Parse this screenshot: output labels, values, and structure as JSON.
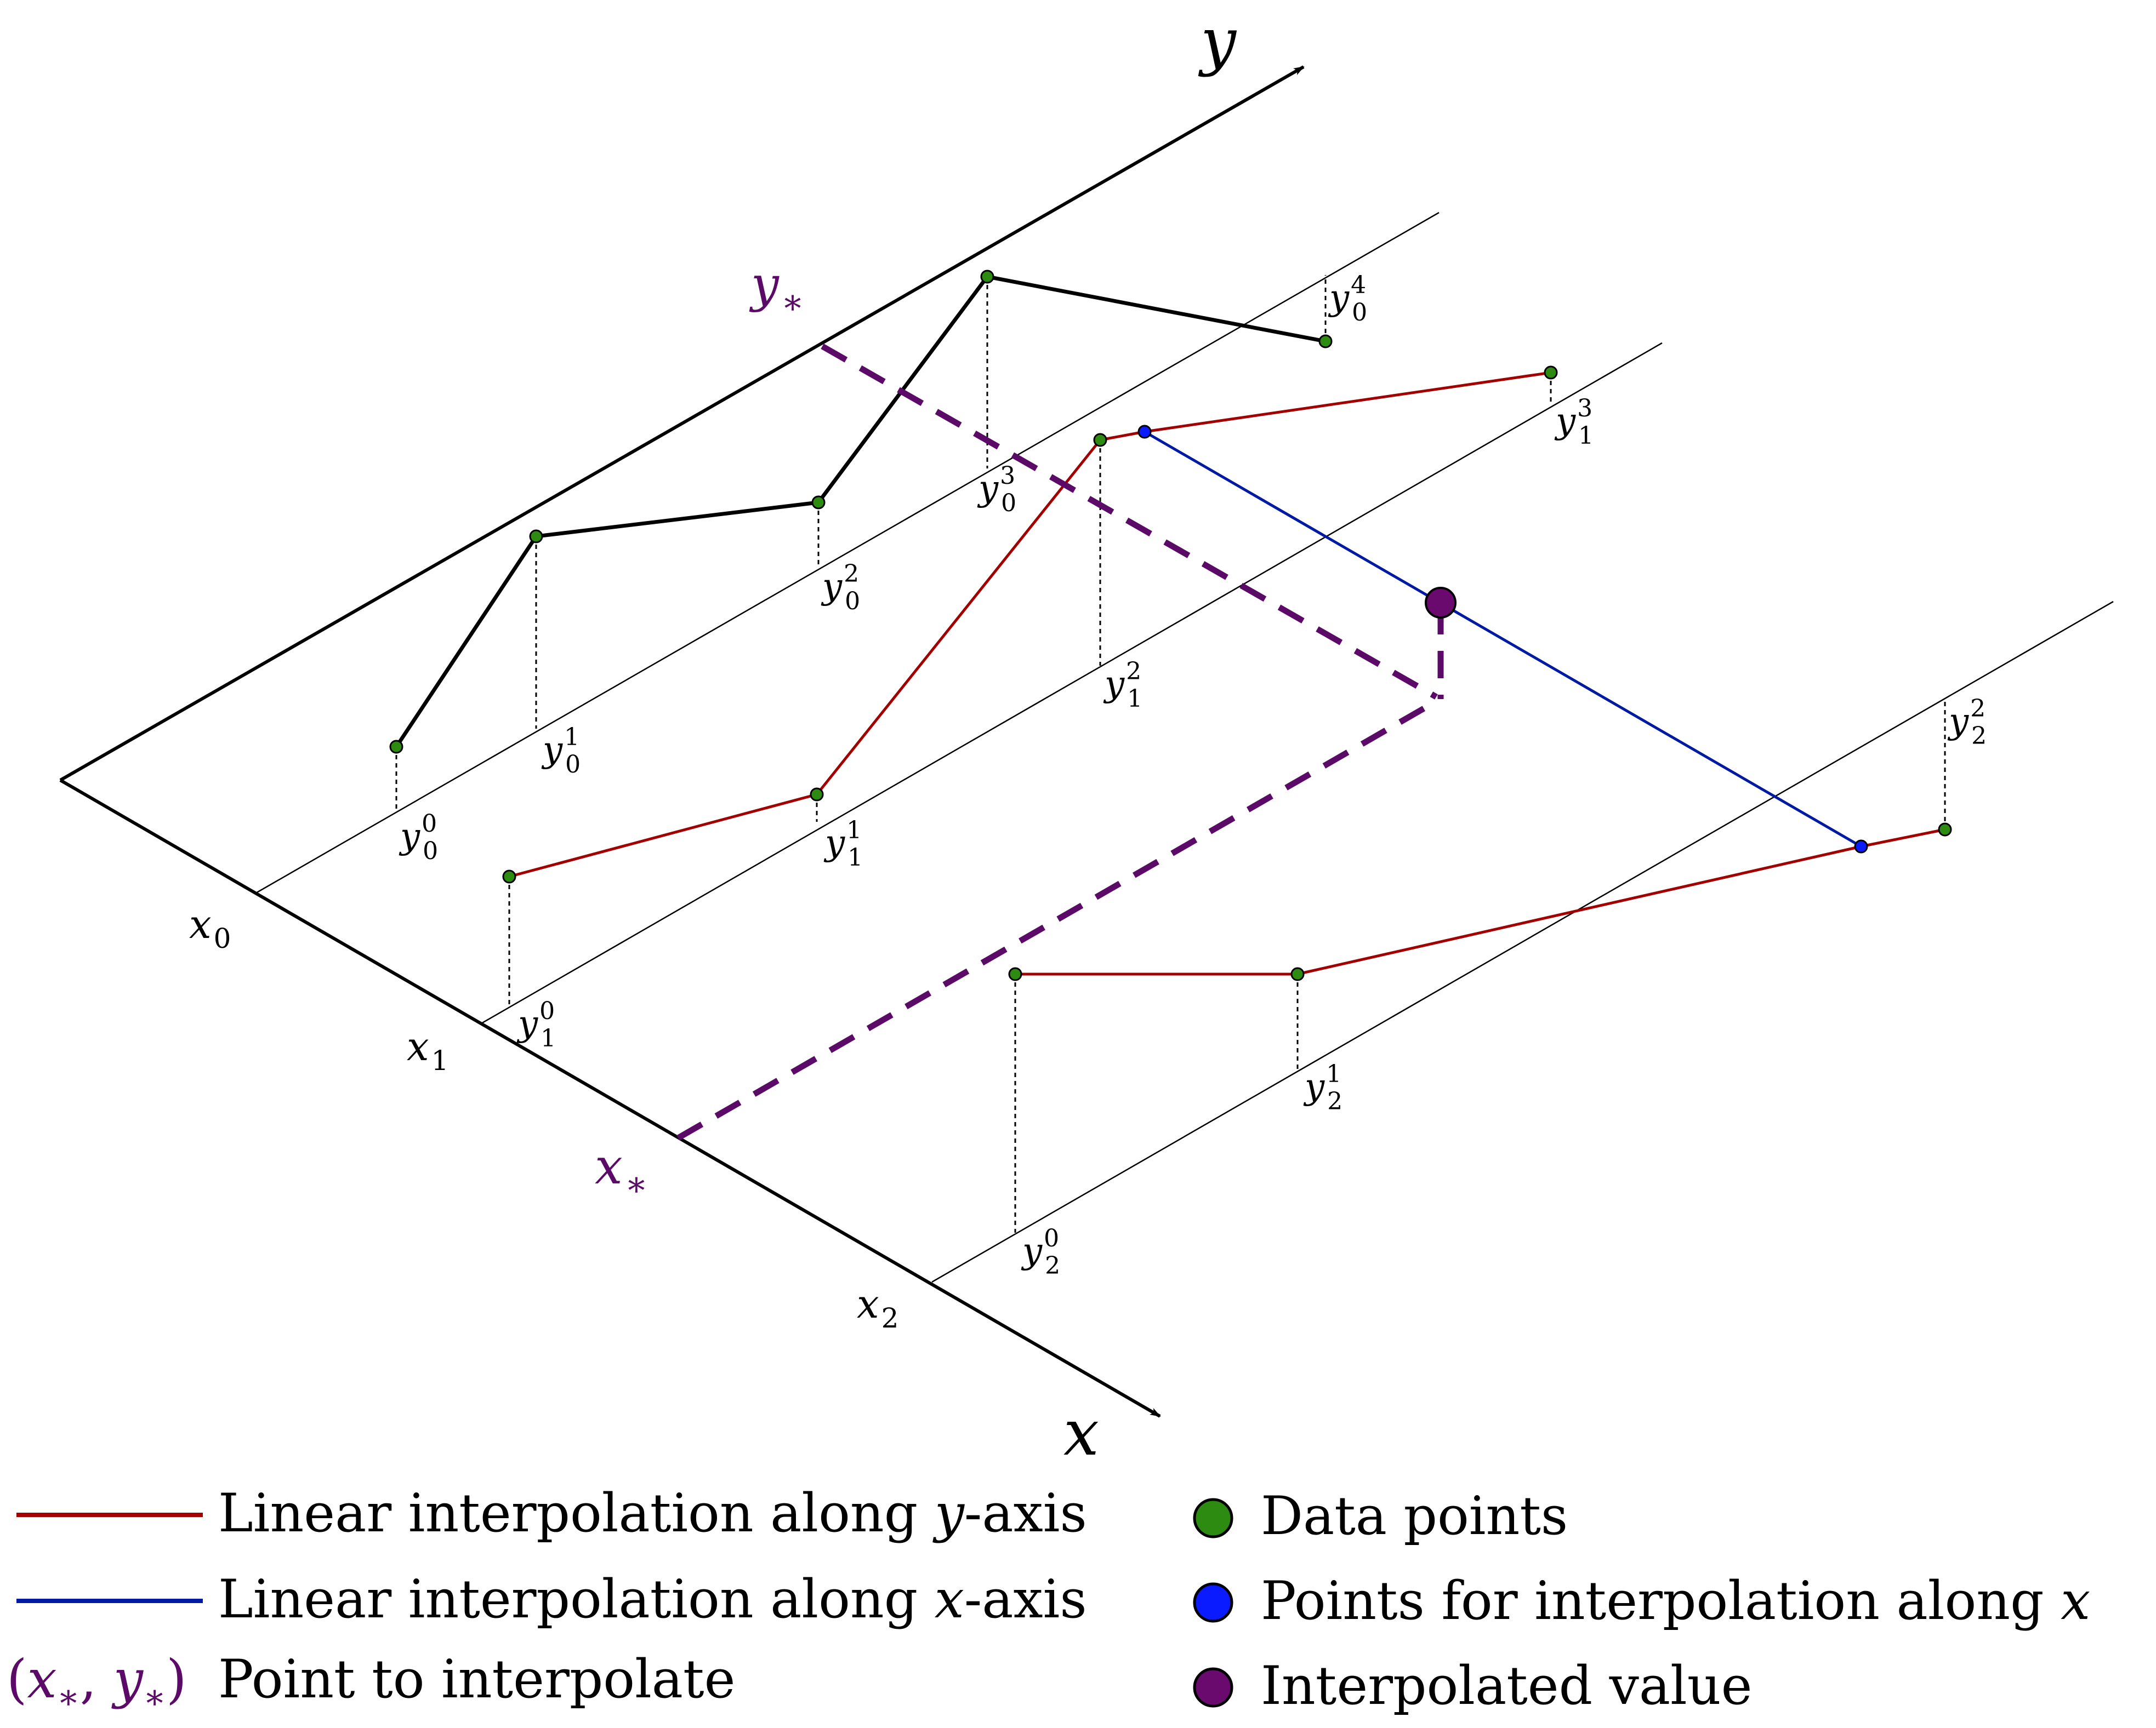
{
  "axes": {
    "x_label": "x",
    "y_label": "y",
    "row_labels": [
      {
        "base": "x",
        "sub": "0"
      },
      {
        "base": "x",
        "sub": "1"
      },
      {
        "base": "x",
        "sub": "2"
      }
    ]
  },
  "interp_point": {
    "x_label": {
      "base": "x",
      "sub": "∗"
    },
    "y_label": {
      "base": "y",
      "sub": "∗"
    }
  },
  "point_labels": [
    {
      "base": "y",
      "sub": "0",
      "sup": "0"
    },
    {
      "base": "y",
      "sub": "0",
      "sup": "1"
    },
    {
      "base": "y",
      "sub": "0",
      "sup": "2"
    },
    {
      "base": "y",
      "sub": "0",
      "sup": "3"
    },
    {
      "base": "y",
      "sub": "0",
      "sup": "4"
    },
    {
      "base": "y",
      "sub": "1",
      "sup": "0"
    },
    {
      "base": "y",
      "sub": "1",
      "sup": "1"
    },
    {
      "base": "y",
      "sub": "1",
      "sup": "2"
    },
    {
      "base": "y",
      "sub": "1",
      "sup": "3"
    },
    {
      "base": "y",
      "sub": "2",
      "sup": "0"
    },
    {
      "base": "y",
      "sub": "2",
      "sup": "1"
    },
    {
      "base": "y",
      "sub": "2",
      "sup": "2"
    }
  ],
  "legend": {
    "red_line": {
      "pre": "Linear interpolation along ",
      "var": "y",
      "post": "-axis"
    },
    "blue_line": {
      "pre": "Linear interpolation along ",
      "var": "x",
      "post": "-axis"
    },
    "point_symbol": {
      "open": "(",
      "x": "x",
      "sub1": "∗",
      "comma": ", ",
      "y": "y",
      "sub2": "∗",
      "close": ")"
    },
    "point_text": "Point to interpolate",
    "green_dot": "Data points",
    "blue_dot": {
      "pre": "Points for interpolation along ",
      "var": "x"
    },
    "purple_dot": "Interpolated value"
  },
  "colors": {
    "black": "#000000",
    "red": "#a30000",
    "blue": "#001aa3",
    "purple": "#5c0a68",
    "green": "#2e8b12",
    "blue_dot": "#0a1cff",
    "purple_dot": "#6a0a6e"
  }
}
